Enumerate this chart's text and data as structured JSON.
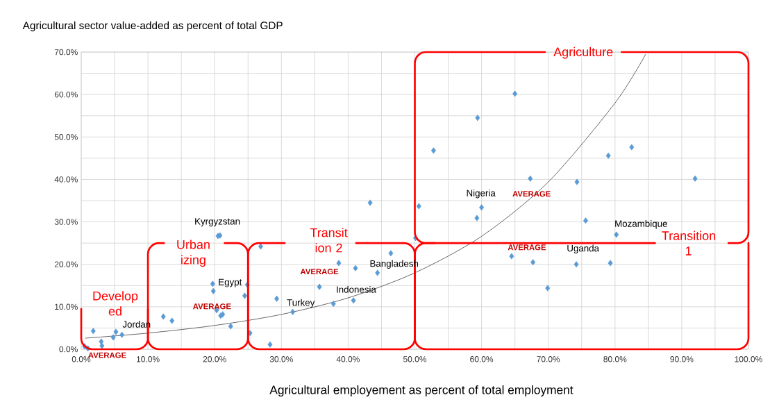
{
  "chart_data": {
    "type": "scatter",
    "title": "Agricultural sector value-added as percent of total GDP",
    "xlabel": "Agricultural employement as percent of total employment",
    "xlim": [
      0,
      100
    ],
    "ylim": [
      0,
      70
    ],
    "xticks": [
      {
        "value": 0,
        "label": "0.0%"
      },
      {
        "value": 5,
        "label": null
      },
      {
        "value": 10,
        "label": "10.0%"
      },
      {
        "value": 15,
        "label": null
      },
      {
        "value": 20,
        "label": "20.0%"
      },
      {
        "value": 25,
        "label": null
      },
      {
        "value": 30,
        "label": "30.0%"
      },
      {
        "value": 35,
        "label": null
      },
      {
        "value": 40,
        "label": "40.0%"
      },
      {
        "value": 45,
        "label": null
      },
      {
        "value": 50,
        "label": "50.0%"
      },
      {
        "value": 55,
        "label": null
      },
      {
        "value": 60,
        "label": "60.0%"
      },
      {
        "value": 65,
        "label": null
      },
      {
        "value": 70,
        "label": "70.0%"
      },
      {
        "value": 75,
        "label": null
      },
      {
        "value": 80,
        "label": "80.0%"
      },
      {
        "value": 85,
        "label": null
      },
      {
        "value": 90,
        "label": "90.0%"
      },
      {
        "value": 95,
        "label": null
      },
      {
        "value": 100,
        "label": "100.0%"
      }
    ],
    "yticks": [
      {
        "value": 0,
        "label": "0.0%"
      },
      {
        "value": 5,
        "label": null
      },
      {
        "value": 10,
        "label": "10.0%"
      },
      {
        "value": 15,
        "label": null
      },
      {
        "value": 20,
        "label": "20.0%"
      },
      {
        "value": 25,
        "label": null
      },
      {
        "value": 30,
        "label": "30.0%"
      },
      {
        "value": 35,
        "label": null
      },
      {
        "value": 40,
        "label": "40.0%"
      },
      {
        "value": 45,
        "label": null
      },
      {
        "value": 50,
        "label": "50.0%"
      },
      {
        "value": 55,
        "label": null
      },
      {
        "value": 60,
        "label": "60.0%"
      },
      {
        "value": 65,
        "label": null
      },
      {
        "value": 70,
        "label": "70.0%"
      }
    ],
    "grid": true,
    "series": [
      {
        "color": "#5b9bd5",
        "marker": "diamond",
        "x": [
          0.5,
          1.0,
          1.8,
          3.0,
          3.1,
          4.8,
          5.2,
          6.1,
          12.3,
          13.6,
          19.7,
          19.8,
          20.3,
          20.9,
          21.2,
          22.4,
          20.5,
          20.8,
          24.5,
          24.9,
          25.3,
          26.9,
          28.3,
          29.3,
          31.7,
          35.7,
          37.8,
          38.6,
          40.8,
          41.1,
          43.3,
          44.4,
          46.4,
          50.1,
          50.6,
          52.8,
          59.3,
          59.4,
          60.0,
          64.5,
          65.0,
          67.3,
          67.7,
          69.9,
          74.2,
          74.3,
          75.6,
          79.0,
          79.3,
          80.2,
          82.5,
          92.0
        ],
        "values": [
          0.7,
          0.2,
          4.3,
          1.8,
          0.8,
          2.8,
          4.1,
          3.4,
          7.7,
          6.7,
          15.4,
          13.7,
          9.2,
          7.9,
          8.2,
          5.4,
          26.7,
          26.8,
          12.6,
          15.2,
          3.8,
          24.2,
          1.1,
          11.9,
          8.8,
          14.7,
          10.7,
          20.3,
          11.5,
          19.1,
          34.5,
          18.0,
          22.6,
          26.2,
          33.7,
          46.8,
          30.9,
          54.5,
          33.4,
          21.9,
          60.2,
          40.2,
          20.5,
          14.4,
          20.0,
          39.4,
          30.3,
          45.6,
          20.3,
          27.0,
          47.6,
          40.2
        ]
      },
      {
        "type": "line",
        "color": "#404040",
        "x": [
          0.6,
          10,
          20,
          30,
          40,
          50,
          60,
          70,
          80,
          84.6
        ],
        "values": [
          2.6,
          3.8,
          5.6,
          8.2,
          12.1,
          18.0,
          26.6,
          39.4,
          58.0,
          69.5
        ]
      }
    ],
    "annotations": [
      "Kyrgyzstan",
      "Jordan",
      "Egypt",
      "Turkey",
      "Indonesia",
      "Bangladesh",
      "Nigeria",
      "Mozambique",
      "Uganda",
      "AVERAGE",
      "AVERAGE",
      "AVERAGE",
      "AVERAGE",
      "AVERAGE",
      "Develop ed",
      "Urban izing",
      "Transit ion 2",
      "Agriculture",
      "Transition 1"
    ]
  }
}
